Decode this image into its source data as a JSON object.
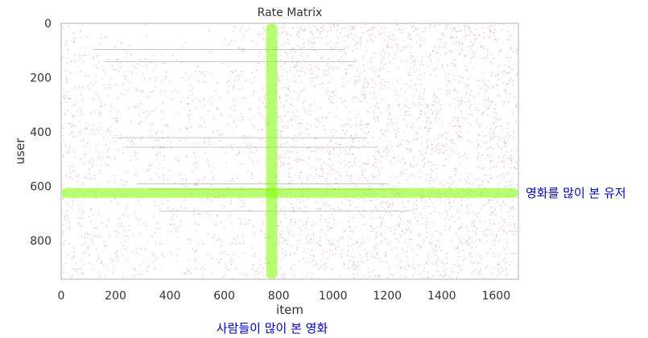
{
  "chart_data": {
    "type": "heatmap",
    "title": "Rate Matrix",
    "xlabel": "item",
    "ylabel": "user",
    "xlim": [
      0,
      1682
    ],
    "ylim": [
      943,
      0
    ],
    "x_ticks": [
      "0",
      "200",
      "400",
      "600",
      "800",
      "1000",
      "1200",
      "1400",
      "1600"
    ],
    "y_ticks": [
      "0",
      "200",
      "400",
      "600",
      "800"
    ],
    "grid": false,
    "cell_color": "#d62728",
    "highlights": [
      {
        "orientation": "horizontal",
        "user": 625,
        "label": "영화를 많이 본 유저"
      },
      {
        "orientation": "vertical",
        "item": 775,
        "label": "사람들이 많이 본 영화"
      }
    ],
    "highlight_color": "#7fff00",
    "annotation_color": "#0000cc"
  }
}
